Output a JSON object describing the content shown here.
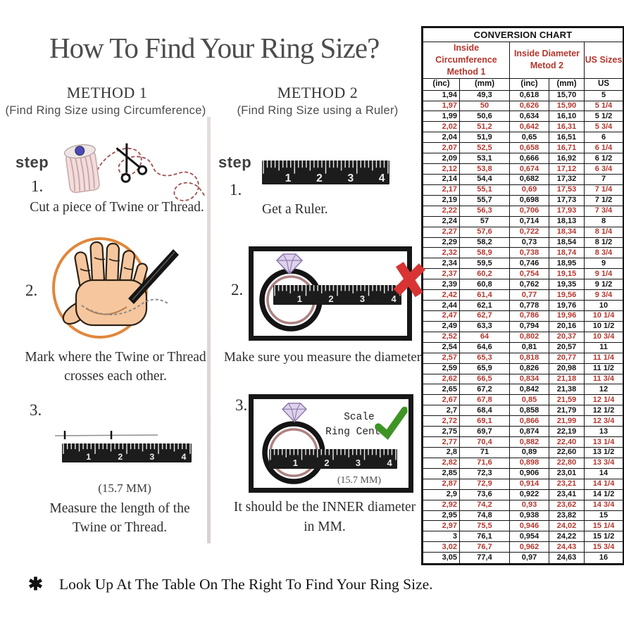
{
  "title": "How To Find Your Ring Size?",
  "method1": {
    "heading": "METHOD 1",
    "subheading": "(Find Ring Size using Circumference)",
    "step_label": "step",
    "steps": [
      {
        "number": "1.",
        "caption": "Cut a piece of  Twine or Thread."
      },
      {
        "number": "2.",
        "caption_line1": "Mark where the Twine or Thread",
        "caption_line2": "crosses each other."
      },
      {
        "number": "3.",
        "measurement": "(15.7 MM)",
        "caption_line1": "Measure the length of the",
        "caption_line2": "Twine or Thread."
      }
    ]
  },
  "method2": {
    "heading": "METHOD 2",
    "subheading": "(Find Ring Size using a Ruler)",
    "step_label": "step",
    "steps": [
      {
        "number": "1.",
        "caption": "Get a Ruler."
      },
      {
        "number": "2.",
        "caption": "Make sure you measure the diameter."
      },
      {
        "number": "3.",
        "scale_line1": "Scale",
        "scale_line2": "Ring Center",
        "measurement": "(15.7 MM)",
        "caption_line1": "It should be the INNER diameter",
        "caption_line2": "in MM."
      }
    ]
  },
  "footer": {
    "bullet": "✱",
    "text": "Look Up  At The Table On The Right To Find Your Ring Size."
  },
  "ruler": {
    "numbers": [
      "1",
      "2",
      "3",
      "4"
    ]
  },
  "colors": {
    "table_red": "#b5362d",
    "check_green": "#3f9426",
    "x_red": "#d93434",
    "circle_orange": "#e0873b",
    "title_gray": "#4d4d4d"
  },
  "conversion_chart": {
    "type": "table",
    "title": "CONVERSION CHART",
    "groups": [
      {
        "line1": "Inside Circumference",
        "line2": "Method 1",
        "span": 2
      },
      {
        "line1": "Inside Diameter",
        "line2": "Metod 2",
        "span": 2
      },
      {
        "line1": "US Sizes",
        "line2": "",
        "span": 1
      }
    ],
    "sub_headers": [
      "(inc)",
      "(mm)",
      "(inc)",
      "(mm)",
      "US"
    ],
    "rows": [
      [
        "1,94",
        "49,3",
        "0,618",
        "15,70",
        "5"
      ],
      [
        "1,97",
        "50",
        "0,626",
        "15,90",
        "5 1/4"
      ],
      [
        "1,99",
        "50,6",
        "0,634",
        "16,10",
        "5 1/2"
      ],
      [
        "2,02",
        "51,2",
        "0,642",
        "16,31",
        "5 3/4"
      ],
      [
        "2,04",
        "51,9",
        "0,65",
        "16,51",
        "6"
      ],
      [
        "2,07",
        "52,5",
        "0,658",
        "16,71",
        "6 1/4"
      ],
      [
        "2,09",
        "53,1",
        "0,666",
        "16,92",
        "6 1/2"
      ],
      [
        "2,12",
        "53,8",
        "0,674",
        "17,12",
        "6 3/4"
      ],
      [
        "2,14",
        "54,4",
        "0,682",
        "17,32",
        "7"
      ],
      [
        "2,17",
        "55,1",
        "0,69",
        "17,53",
        "7 1/4"
      ],
      [
        "2,19",
        "55,7",
        "0,698",
        "17,73",
        "7 1/2"
      ],
      [
        "2,22",
        "56,3",
        "0,706",
        "17,93",
        "7 3/4"
      ],
      [
        "2,24",
        "57",
        "0,714",
        "18,13",
        "8"
      ],
      [
        "2,27",
        "57,6",
        "0,722",
        "18,34",
        "8 1/4"
      ],
      [
        "2,29",
        "58,2",
        "0,73",
        "18,54",
        "8 1/2"
      ],
      [
        "2,32",
        "58,9",
        "0,738",
        "18,74",
        "8 3/4"
      ],
      [
        "2,34",
        "59,5",
        "0,746",
        "18,95",
        "9"
      ],
      [
        "2,37",
        "60,2",
        "0,754",
        "19,15",
        "9 1/4"
      ],
      [
        "2,39",
        "60,8",
        "0,762",
        "19,35",
        "9 1/2"
      ],
      [
        "2,42",
        "61,4",
        "0,77",
        "19,56",
        "9 3/4"
      ],
      [
        "2,44",
        "62,1",
        "0,778",
        "19,76",
        "10"
      ],
      [
        "2,47",
        "62,7",
        "0,786",
        "19,96",
        "10 1/4"
      ],
      [
        "2,49",
        "63,3",
        "0,794",
        "20,16",
        "10 1/2"
      ],
      [
        "2,52",
        "64",
        "0,802",
        "20,37",
        "10 3/4"
      ],
      [
        "2,54",
        "64,6",
        "0,81",
        "20,57",
        "11"
      ],
      [
        "2,57",
        "65,3",
        "0,818",
        "20,77",
        "11 1/4"
      ],
      [
        "2,59",
        "65,9",
        "0,826",
        "20,98",
        "11 1/2"
      ],
      [
        "2,62",
        "66,5",
        "0,834",
        "21,18",
        "11 3/4"
      ],
      [
        "2,65",
        "67,2",
        "0,842",
        "21,38",
        "12"
      ],
      [
        "2,67",
        "67,8",
        "0,85",
        "21,59",
        "12 1/4"
      ],
      [
        "2,7",
        "68,4",
        "0,858",
        "21,79",
        "12 1/2"
      ],
      [
        "2,72",
        "69,1",
        "0,866",
        "21,99",
        "12 3/4"
      ],
      [
        "2,75",
        "69,7",
        "0,874",
        "22,19",
        "13"
      ],
      [
        "2,77",
        "70,4",
        "0,882",
        "22,40",
        "13 1/4"
      ],
      [
        "2,8",
        "71",
        "0,89",
        "22,60",
        "13 1/2"
      ],
      [
        "2,82",
        "71,6",
        "0,898",
        "22,80",
        "13 3/4"
      ],
      [
        "2,85",
        "72,3",
        "0,906",
        "23,01",
        "14"
      ],
      [
        "2,87",
        "72,9",
        "0,914",
        "23,21",
        "14 1/4"
      ],
      [
        "2,9",
        "73,6",
        "0,922",
        "23,41",
        "14 1/2"
      ],
      [
        "2,92",
        "74,2",
        "0,93",
        "23,62",
        "14 3/4"
      ],
      [
        "2,95",
        "74,8",
        "0,938",
        "23,82",
        "15"
      ],
      [
        "2,97",
        "75,5",
        "0,946",
        "24,02",
        "15 1/4"
      ],
      [
        "3",
        "76,1",
        "0,954",
        "24,22",
        "15 1/2"
      ],
      [
        "3,02",
        "76,7",
        "0,962",
        "24,43",
        "15 3/4"
      ],
      [
        "3,05",
        "77,4",
        "0,97",
        "24,63",
        "16"
      ]
    ]
  }
}
